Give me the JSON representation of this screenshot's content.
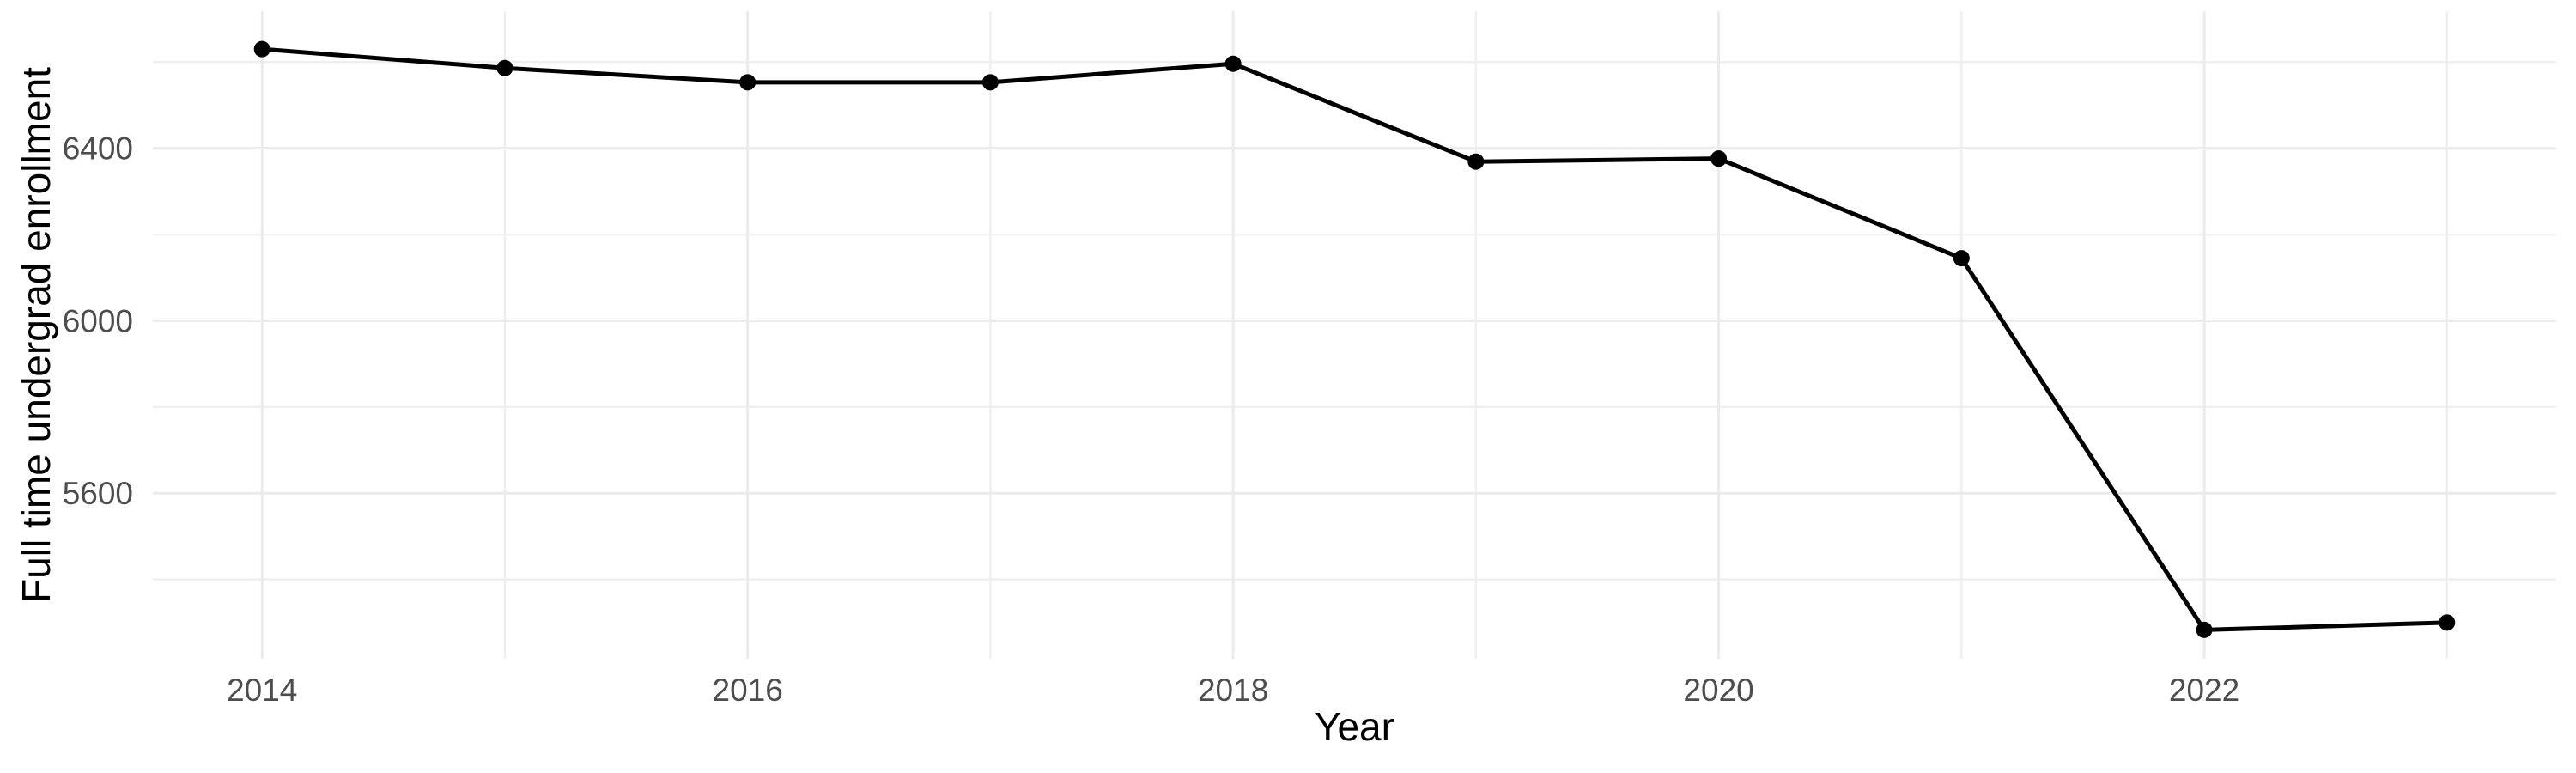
{
  "chart_data": {
    "type": "line",
    "title": "",
    "xlabel": "Year",
    "ylabel": "Full time undergrad enrollment",
    "x": [
      2014,
      2015,
      2016,
      2017,
      2018,
      2019,
      2020,
      2021,
      2022,
      2023
    ],
    "series": [
      {
        "name": "Full time undergrad enrollment",
        "values": [
          6630,
          6586,
          6553,
          6553,
          6596,
          6369,
          6376,
          6145,
          5283,
          5300
        ],
        "color": "#000000",
        "marker": "circle"
      }
    ],
    "x_ticks_labeled": [
      "2014",
      "2016",
      "2018",
      "2020",
      "2022"
    ],
    "x_ticks_labeled_values": [
      2014,
      2016,
      2018,
      2020,
      2022
    ],
    "x_ticks_minor_values": [
      2015,
      2017,
      2019,
      2021,
      2023
    ],
    "y_ticks_labeled": [
      "6400",
      "6000",
      "5600"
    ],
    "y_ticks_labeled_values": [
      6400,
      6000,
      5600
    ],
    "y_ticks_minor_values": [
      6600,
      6200,
      5800,
      5400
    ],
    "xlim": [
      2013.55,
      2023.45
    ],
    "ylim": [
      5216,
      6718
    ],
    "grid": "major+minor",
    "legend": "none",
    "colors": {
      "background": "#FFFFFF",
      "line": "#000000",
      "point": "#000000",
      "grid_major": "#EBEBEB",
      "grid_minor": "#EFEFEF",
      "tick_label": "#4D4D4D",
      "axis_title": "#000000"
    }
  }
}
